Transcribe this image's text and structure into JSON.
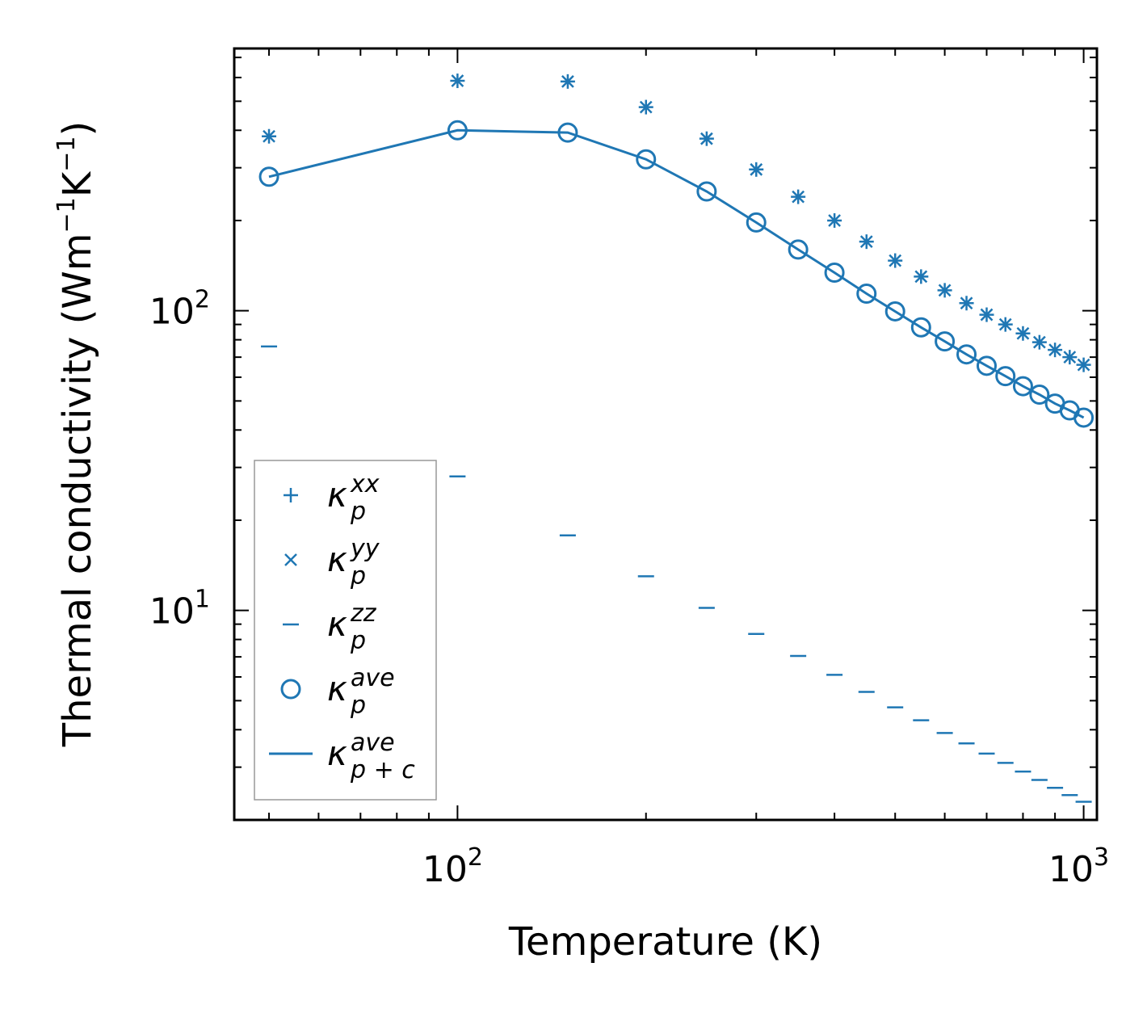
{
  "chart_data": {
    "type": "scatter",
    "xscale": "log",
    "yscale": "log",
    "xlim": [
      44,
      1050
    ],
    "ylim": [
      2.0,
      750
    ],
    "xlabel": "Temperature (K)",
    "ylabel_main": "Thermal conductivity (Wm",
    "ylabel_sup1": "−1",
    "ylabel_mid": "K",
    "ylabel_sup2": "−1",
    "ylabel_close": ")",
    "x_major_ticks": [
      {
        "value": 100,
        "base": "10",
        "exp": "2"
      },
      {
        "value": 1000,
        "base": "10",
        "exp": "3"
      }
    ],
    "y_major_ticks": [
      {
        "value": 10,
        "base": "10",
        "exp": "1"
      },
      {
        "value": 100,
        "base": "10",
        "exp": "2"
      }
    ],
    "color": "#1f77b4",
    "x": [
      50,
      100,
      150,
      200,
      250,
      300,
      350,
      400,
      450,
      500,
      550,
      600,
      650,
      700,
      750,
      800,
      850,
      900,
      950,
      1000
    ],
    "series": [
      {
        "name": "kappa_p_xx",
        "marker": "plus",
        "values": [
          382,
          585,
          582,
          478,
          375,
          296,
          240,
          200,
          170,
          147,
          130,
          117,
          106,
          97,
          90,
          84,
          78.5,
          74,
          70,
          66
        ]
      },
      {
        "name": "kappa_p_yy",
        "marker": "x",
        "values": [
          382,
          585,
          582,
          478,
          375,
          296,
          240,
          200,
          170,
          147,
          130,
          117,
          106,
          97,
          90,
          84,
          78.5,
          74,
          70,
          66
        ]
      },
      {
        "name": "kappa_p_zz",
        "marker": "hline",
        "values": [
          76,
          28,
          17.8,
          13.0,
          10.2,
          8.35,
          7.05,
          6.1,
          5.35,
          4.75,
          4.3,
          3.9,
          3.6,
          3.33,
          3.1,
          2.9,
          2.72,
          2.56,
          2.42,
          2.3
        ]
      },
      {
        "name": "kappa_p_ave",
        "marker": "circle",
        "values": [
          280,
          400,
          393,
          320,
          250,
          197,
          160,
          134,
          114,
          99.5,
          88,
          79,
          71.5,
          65.5,
          60.5,
          56,
          52.5,
          49,
          46.5,
          44
        ]
      },
      {
        "name": "kappa_pc_ave",
        "marker": "line",
        "values": [
          280,
          400,
          393,
          320,
          250,
          197,
          160,
          134,
          114,
          99.5,
          88,
          79,
          71.5,
          65.5,
          60.5,
          56,
          52.5,
          49,
          46.5,
          44
        ]
      }
    ],
    "legend": {
      "position": "lower-left",
      "entries": [
        {
          "marker": "plus",
          "symbol": "κ",
          "sub": "p",
          "sup": "xx"
        },
        {
          "marker": "x",
          "symbol": "κ",
          "sub": "p",
          "sup": "yy"
        },
        {
          "marker": "hline",
          "symbol": "κ",
          "sub": "p",
          "sup": "zz"
        },
        {
          "marker": "circle",
          "symbol": "κ",
          "sub": "p",
          "sup": "ave"
        },
        {
          "marker": "line",
          "symbol": "κ",
          "sub": "p + c",
          "sup": "ave"
        }
      ]
    }
  }
}
